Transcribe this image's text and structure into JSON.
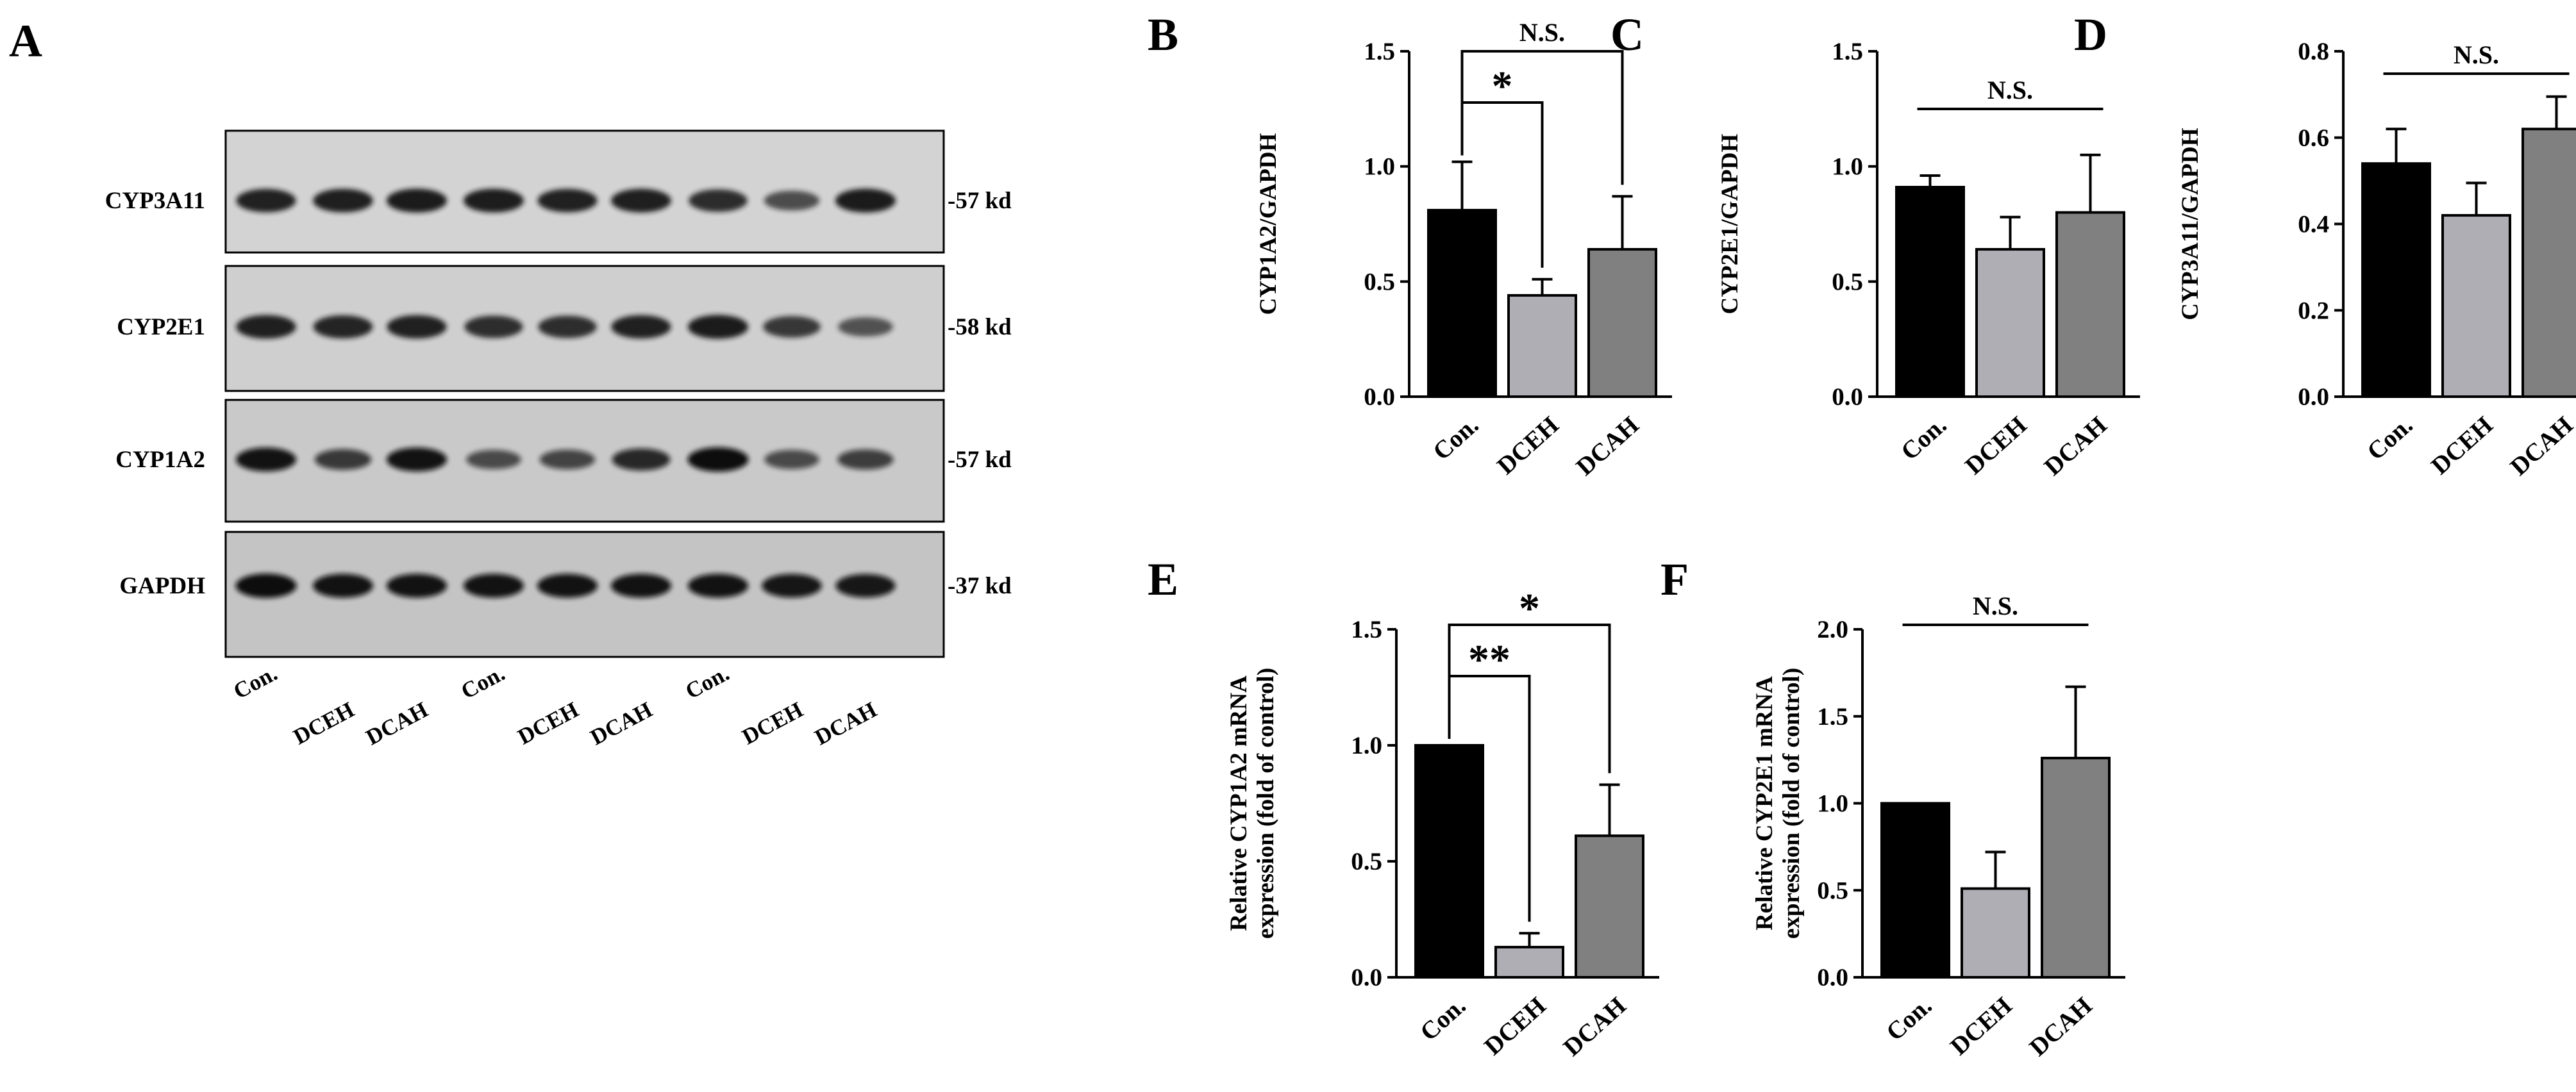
{
  "panel_a": {
    "letter": "A",
    "proteins": [
      {
        "name": "CYP3A11",
        "kd": "57 kd",
        "band_color": "#121212",
        "background": "#d3d3d3",
        "intensities": [
          0.9,
          0.92,
          0.95,
          0.94,
          0.9,
          0.93,
          0.82,
          0.55,
          0.95
        ]
      },
      {
        "name": "CYP2E1",
        "kd": "58 kd",
        "band_color": "#121212",
        "background": "#cfcfcf",
        "intensities": [
          0.92,
          0.88,
          0.9,
          0.8,
          0.8,
          0.9,
          0.95,
          0.72,
          0.5
        ]
      },
      {
        "name": "CYP1A2",
        "kd": "57 kd",
        "band_color": "#0e0e0e",
        "background": "#c9c9c9",
        "intensities": [
          0.95,
          0.65,
          0.95,
          0.5,
          0.55,
          0.78,
          1.0,
          0.5,
          0.6
        ]
      },
      {
        "name": "GAPDH",
        "kd": "37 kd",
        "band_color": "#0a0a0a",
        "background": "#c4c4c4",
        "intensities": [
          1.0,
          0.95,
          0.95,
          0.95,
          0.95,
          0.95,
          0.95,
          0.92,
          0.9
        ]
      }
    ],
    "lanes": [
      "Con.",
      "DCEH",
      "DCAH",
      "Con.",
      "DCEH",
      "DCAH",
      "Con.",
      "DCEH",
      "DCAH"
    ]
  },
  "colors": {
    "con": "#000000",
    "dceh": "#aeaeb4",
    "dcah": "#808080"
  },
  "chart_data": [
    {
      "panel": "B",
      "type": "bar",
      "categories": [
        "Con.",
        "DCEH",
        "DCAH"
      ],
      "values": [
        0.81,
        0.44,
        0.64
      ],
      "errors": [
        0.21,
        0.07,
        0.23
      ],
      "ylabel": "CYP1A2/GAPDH",
      "ylim": [
        0,
        1.5
      ],
      "yticks": [
        "0.0",
        "0.5",
        "1.0",
        "1.5"
      ],
      "significance": [
        {
          "label": "*",
          "from": 0,
          "to": 1
        },
        {
          "label": "N.S.",
          "from": 0,
          "to": 2
        }
      ]
    },
    {
      "panel": "C",
      "type": "bar",
      "categories": [
        "Con.",
        "DCEH",
        "DCAH"
      ],
      "values": [
        0.91,
        0.64,
        0.8
      ],
      "errors": [
        0.05,
        0.14,
        0.25
      ],
      "ylabel": "CYP2E1/GAPDH",
      "ylim": [
        0,
        1.5
      ],
      "yticks": [
        "0.0",
        "0.5",
        "1.0",
        "1.5"
      ],
      "significance": [
        {
          "label": "N.S.",
          "from": 0,
          "to": 2
        }
      ]
    },
    {
      "panel": "D",
      "type": "bar",
      "categories": [
        "Con.",
        "DCEH",
        "DCAH"
      ],
      "values": [
        0.54,
        0.42,
        0.62
      ],
      "errors": [
        0.08,
        0.075,
        0.075
      ],
      "ylabel": "CYP3A11/GAPDH",
      "ylim": [
        0,
        0.8
      ],
      "yticks": [
        "0.0",
        "0.2",
        "0.4",
        "0.6",
        "0.8"
      ],
      "significance": [
        {
          "label": "N.S.",
          "from": 0,
          "to": 2
        }
      ]
    },
    {
      "panel": "E",
      "type": "bar",
      "categories": [
        "Con.",
        "DCEH",
        "DCAH"
      ],
      "values": [
        1.0,
        0.13,
        0.61
      ],
      "errors": [
        0,
        0.06,
        0.22
      ],
      "ylabel": [
        "Relative CYP1A2 mRNA",
        "expression (fold of control)"
      ],
      "ylim": [
        0,
        1.5
      ],
      "yticks": [
        "0.0",
        "0.5",
        "1.0",
        "1.5"
      ],
      "significance": [
        {
          "label": "**",
          "from": 0,
          "to": 1
        },
        {
          "label": "*",
          "from": 0,
          "to": 2
        }
      ]
    },
    {
      "panel": "F",
      "type": "bar",
      "categories": [
        "Con.",
        "DCEH",
        "DCAH"
      ],
      "values": [
        1.0,
        0.51,
        1.26
      ],
      "errors": [
        0,
        0.21,
        0.41
      ],
      "ylabel": [
        "Relative CYP2E1  mRNA",
        "expression (fold of control)"
      ],
      "ylim": [
        0,
        2.0
      ],
      "yticks": [
        "0.0",
        "0.5",
        "1.0",
        "1.5",
        "2.0"
      ],
      "significance": [
        {
          "label": "N.S.",
          "from": 0,
          "to": 2
        }
      ]
    }
  ]
}
